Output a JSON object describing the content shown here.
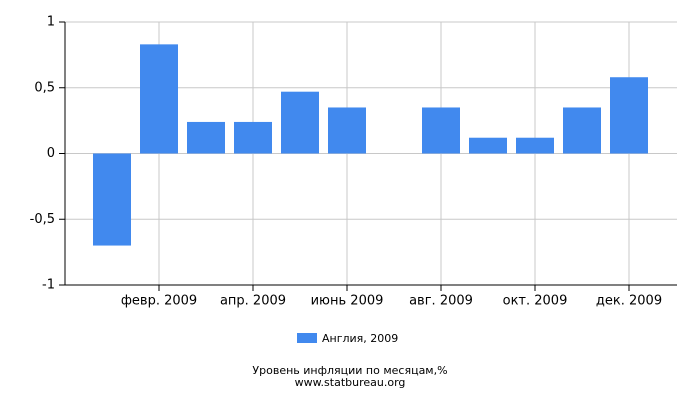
{
  "chart_data": {
    "type": "bar",
    "title": "Уровень инфляции по месяцам,%",
    "source": "www.statbureau.org",
    "categories": [
      null,
      "февр. 2009",
      null,
      "апр. 2009",
      null,
      "июнь 2009",
      null,
      "авг. 2009",
      null,
      "окт. 2009",
      null,
      "дек. 2009"
    ],
    "series": [
      {
        "name": "Англия, 2009",
        "color": "#4189ee",
        "values": [
          -0.7,
          0.83,
          0.24,
          0.24,
          0.47,
          0.35,
          0,
          0.35,
          0.12,
          0.12,
          0.35,
          0.58
        ]
      }
    ],
    "ylim": [
      -1,
      1
    ],
    "yticks": [
      -1,
      {
        "value": -0.5,
        "label": "-0,5"
      },
      0,
      {
        "value": 0.5,
        "label": "0,5"
      },
      1
    ],
    "grid": true
  }
}
